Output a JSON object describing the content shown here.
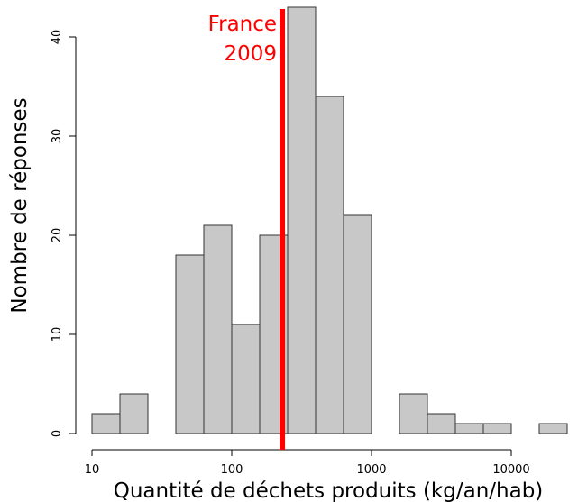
{
  "chart_data": {
    "type": "bar",
    "subtype": "histogram",
    "xlabel": "Quantité de déchets produits (kg/an/hab)",
    "ylabel": "Nombre de réponses",
    "x_scale": "log10",
    "x_ticks": [
      10,
      100,
      1000,
      10000
    ],
    "x_tick_labels": [
      "10",
      "100",
      "1000",
      "10000"
    ],
    "y_ticks": [
      0,
      10,
      20,
      30,
      40
    ],
    "y_tick_labels": [
      "0",
      "10",
      "20",
      "30",
      "40"
    ],
    "ylim": [
      0,
      43
    ],
    "bins": [
      {
        "x0": 10,
        "x1": 15.85,
        "count": 2
      },
      {
        "x0": 15.85,
        "x1": 25.12,
        "count": 4
      },
      {
        "x0": 25.12,
        "x1": 39.81,
        "count": 0
      },
      {
        "x0": 39.81,
        "x1": 63.1,
        "count": 18
      },
      {
        "x0": 63.1,
        "x1": 100,
        "count": 21
      },
      {
        "x0": 100,
        "x1": 158.5,
        "count": 11
      },
      {
        "x0": 158.5,
        "x1": 251.2,
        "count": 20
      },
      {
        "x0": 251.2,
        "x1": 398.1,
        "count": 43
      },
      {
        "x0": 398.1,
        "x1": 631,
        "count": 34
      },
      {
        "x0": 631,
        "x1": 1000,
        "count": 22
      },
      {
        "x0": 1000,
        "x1": 1585,
        "count": 0
      },
      {
        "x0": 1585,
        "x1": 2512,
        "count": 4
      },
      {
        "x0": 2512,
        "x1": 3981,
        "count": 2
      },
      {
        "x0": 3981,
        "x1": 6310,
        "count": 1
      },
      {
        "x0": 6310,
        "x1": 10000,
        "count": 1
      },
      {
        "x0": 10000,
        "x1": 15850,
        "count": 0
      },
      {
        "x0": 15850,
        "x1": 25120,
        "count": 1
      }
    ],
    "reference_line": {
      "x": 230,
      "label_line1": "France",
      "label_line2": "2009",
      "color": "#ff0000"
    },
    "bar_fill": "#c8c8c8",
    "bar_stroke": "#333333",
    "grid": false
  }
}
